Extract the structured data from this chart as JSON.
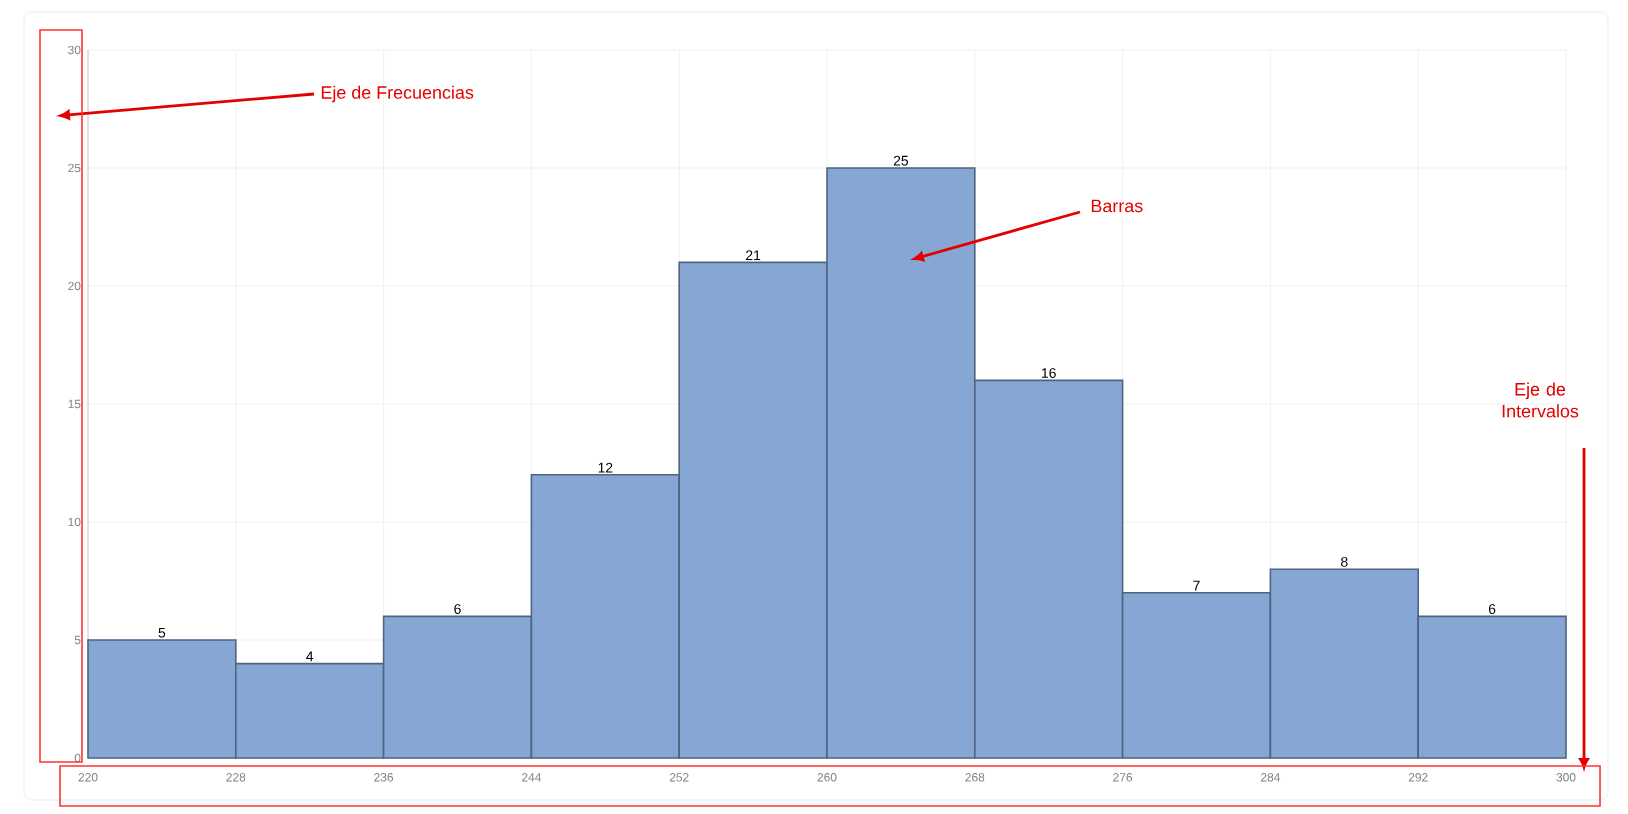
{
  "chart_data": {
    "type": "histogram",
    "bins": [
      220,
      228,
      236,
      244,
      252,
      260,
      268,
      276,
      284,
      292,
      300
    ],
    "values": [
      5,
      4,
      6,
      12,
      21,
      25,
      16,
      7,
      8,
      6
    ],
    "color": "#86a7d4",
    "xlim": [
      220,
      300
    ],
    "xticks": [
      220,
      228,
      236,
      244,
      252,
      260,
      268,
      276,
      284,
      292,
      300
    ],
    "ylim": [
      0,
      30
    ],
    "yticks": [
      0,
      5,
      10,
      15,
      20,
      25,
      30
    ],
    "grid": true,
    "data_labels": true,
    "annotations": [
      "Eje de Frecuencias",
      "Barras",
      "Eje de Intervalos"
    ]
  }
}
